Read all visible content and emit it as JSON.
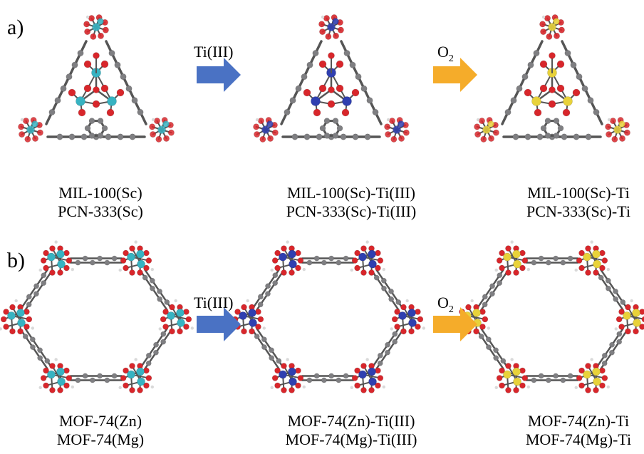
{
  "panels": [
    {
      "letter": "a)",
      "arrows": [
        {
          "label": "Ti(III)",
          "color": "#4a72c4"
        },
        {
          "label_main": "O",
          "label_sub": "2",
          "color": "#f5ac2a"
        }
      ],
      "structures": [
        {
          "line1": "MIL-100(Sc)",
          "line2": "PCN-333(Sc)",
          "metal_color": "#37b3c2"
        },
        {
          "line1": "MIL-100(Sc)-Ti(III)",
          "line2": "PCN-333(Sc)-Ti(III)",
          "metal_color": "#2f3fb0"
        },
        {
          "line1": "MIL-100(Sc)-Ti",
          "line2": "PCN-333(Sc)-Ti",
          "metal_color": "#e8d23a"
        }
      ]
    },
    {
      "letter": "b)",
      "arrows": [
        {
          "label": "Ti(III)",
          "color": "#4a72c4"
        },
        {
          "label_main": "O",
          "label_sub": "2",
          "color": "#f5ac2a"
        }
      ],
      "structures": [
        {
          "line1": "MOF-74(Zn)",
          "line2": "MOF-74(Mg)",
          "metal_color": "#37b3c2"
        },
        {
          "line1": "MOF-74(Zn)-Ti(III)",
          "line2": "MOF-74(Mg)-Ti(III)",
          "metal_color": "#2f3fb0"
        },
        {
          "line1": "MOF-74(Zn)-Ti",
          "line2": "MOF-74(Mg)-Ti",
          "metal_color": "#e8d23a"
        }
      ]
    }
  ],
  "atom_colors": {
    "oxygen": "#d8262b",
    "carbon": "#7f7f82",
    "hydrogen": "#d9d9d9",
    "bond": "#555555"
  }
}
